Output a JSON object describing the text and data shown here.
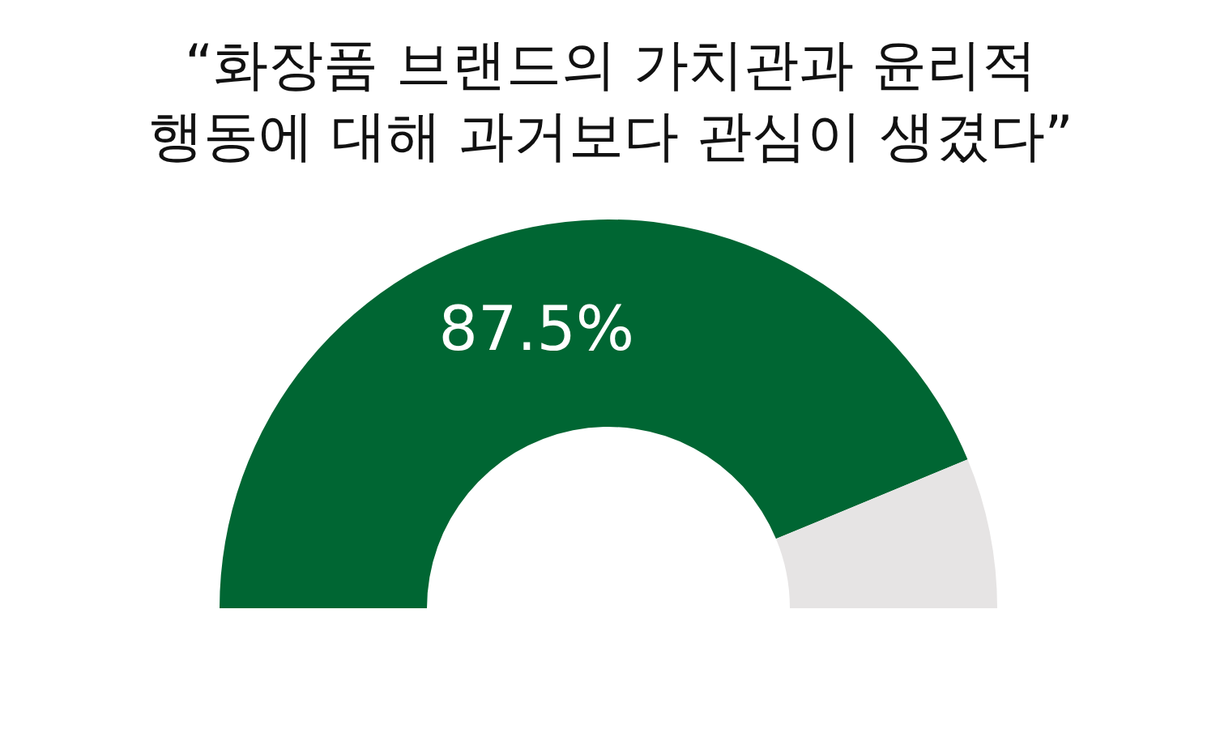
{
  "chart_data": {
    "type": "donut",
    "title": "“화장품 브랜드의 가치관과 윤리적\n행동에 대해 과거보다 관심이 생겼다”",
    "categories": [
      null,
      null
    ],
    "values": [
      87.5,
      12.5
    ],
    "colors": [
      "#006633",
      "#e6e4e4"
    ],
    "value_labels": [
      "87.5%",
      null
    ]
  }
}
